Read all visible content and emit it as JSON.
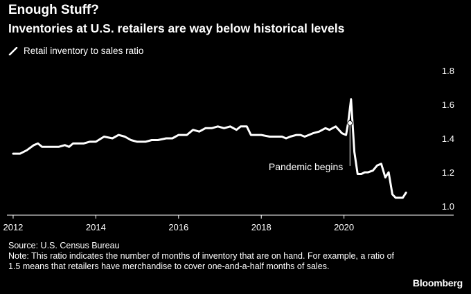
{
  "chart_data": {
    "type": "line",
    "title": "Enough Stuff?",
    "subtitle": "Inventories at U.S. retailers are way below historical levels",
    "legend": {
      "placement": "top-left",
      "entries": [
        "Retail inventory to sales ratio"
      ]
    },
    "series": [
      {
        "name": "Retail inventory to sales ratio",
        "color": "#ffffff",
        "x": [
          2012.0,
          2012.17,
          2012.33,
          2012.5,
          2012.6,
          2012.7,
          2013.0,
          2013.1,
          2013.25,
          2013.35,
          2013.45,
          2013.55,
          2013.7,
          2013.85,
          2014.0,
          2014.2,
          2014.4,
          2014.55,
          2014.7,
          2014.85,
          2015.0,
          2015.2,
          2015.35,
          2015.5,
          2015.7,
          2015.85,
          2016.0,
          2016.1,
          2016.2,
          2016.35,
          2016.5,
          2016.65,
          2016.8,
          2016.95,
          2017.1,
          2017.25,
          2017.4,
          2017.5,
          2017.65,
          2017.75,
          2017.9,
          2018.0,
          2018.2,
          2018.35,
          2018.5,
          2018.6,
          2018.7,
          2018.85,
          2018.95,
          2019.05,
          2019.15,
          2019.25,
          2019.4,
          2019.55,
          2019.65,
          2019.8,
          2019.95,
          2020.05,
          2020.1,
          2020.17,
          2020.25,
          2020.33,
          2020.42,
          2020.5,
          2020.58,
          2020.7,
          2020.8,
          2020.9,
          2021.0,
          2021.08,
          2021.17,
          2021.25,
          2021.33,
          2021.42,
          2021.5
        ],
        "y": [
          1.31,
          1.31,
          1.33,
          1.36,
          1.37,
          1.35,
          1.35,
          1.35,
          1.36,
          1.35,
          1.37,
          1.37,
          1.37,
          1.38,
          1.38,
          1.41,
          1.4,
          1.42,
          1.41,
          1.39,
          1.38,
          1.38,
          1.39,
          1.39,
          1.4,
          1.4,
          1.42,
          1.42,
          1.42,
          1.45,
          1.44,
          1.46,
          1.46,
          1.47,
          1.46,
          1.47,
          1.45,
          1.47,
          1.47,
          1.42,
          1.42,
          1.42,
          1.41,
          1.41,
          1.41,
          1.4,
          1.41,
          1.42,
          1.42,
          1.41,
          1.42,
          1.43,
          1.44,
          1.46,
          1.45,
          1.47,
          1.43,
          1.42,
          1.49,
          1.63,
          1.32,
          1.19,
          1.19,
          1.2,
          1.2,
          1.21,
          1.24,
          1.25,
          1.17,
          1.2,
          1.07,
          1.05,
          1.05,
          1.05,
          1.08
        ]
      }
    ],
    "xlim": [
      2011.85,
      2022.2
    ],
    "ylim": [
      0.96,
      1.84
    ],
    "x_ticks": [
      2012,
      2014,
      2016,
      2018,
      2020
    ],
    "x_tick_labels": [
      "2012",
      "2014",
      "2016",
      "2018",
      "2020"
    ],
    "y_ticks": [
      1.0,
      1.2,
      1.4,
      1.6,
      1.8
    ],
    "y_tick_labels": [
      "1.0",
      "1.2",
      "1.4",
      "1.6",
      "1.8"
    ],
    "y_axis_side": "right",
    "grid": false,
    "annotations": [
      {
        "text": "Pandemic begins",
        "x": 2020.17,
        "y": 1.49
      }
    ]
  },
  "footer": {
    "source": "Source: U.S. Census Bureau",
    "note": "Note: This ratio indicates the number of months of inventory that are on hand. For example, a ratio of 1.5 means that retailers have merchandise to cover one-and-a-half months of sales."
  },
  "brand": "Bloomberg"
}
